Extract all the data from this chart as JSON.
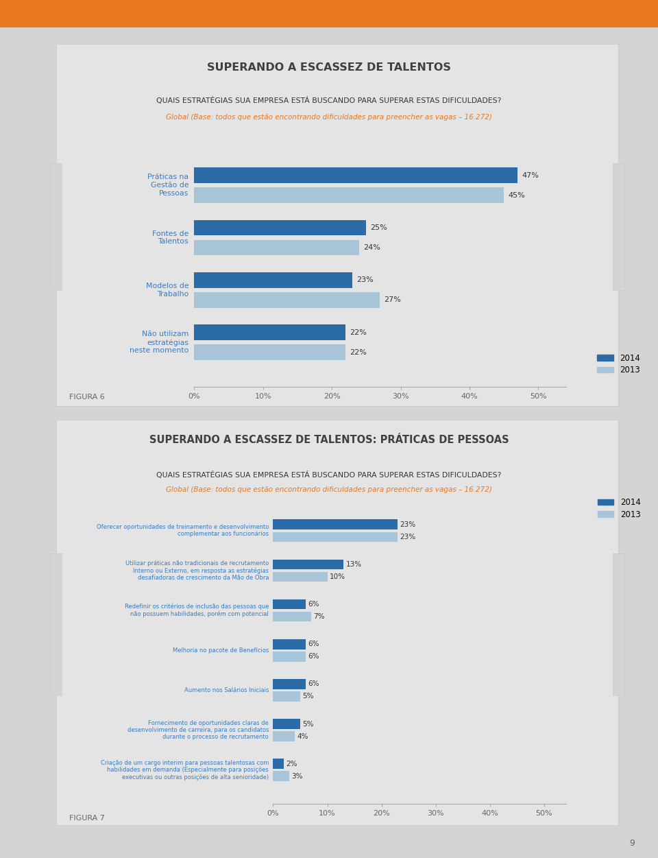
{
  "page_bg": "#d4d4d4",
  "orange_bar_color": "#e8781e",
  "panel_bg": "#e4e4e4",
  "panel_border": "#c8c8c8",
  "chart1": {
    "title": "SUPERANDO A ESCASSEZ DE TALENTOS",
    "question": "QUAIS ESTRATÉGIAS SUA EMPRESA ESTÁ BUSCANDO PARA SUPERAR ESTAS DIFICULDADES?",
    "subtitle": "Global (Base: todos que estão encontrando dificuldades para preencher as vagas – 16.272)",
    "categories": [
      "Práticas na\nGestão de\nPessoas",
      "Fontes de\nTalentos",
      "Modelos de\nTrabalho",
      "Não utilizam\nestratégias\nneste momento"
    ],
    "values_2014": [
      47,
      25,
      23,
      22
    ],
    "values_2013": [
      45,
      24,
      27,
      22
    ],
    "color_2014": "#2b6ca8",
    "color_2013": "#a8c4d8",
    "xticks": [
      0,
      10,
      20,
      30,
      40,
      50
    ],
    "figure_label": "FIGURA 6"
  },
  "chart2": {
    "title": "SUPERANDO A ESCASSEZ DE TALENTOS: PRÁTICAS DE PESSOAS",
    "question": "QUAIS ESTRATÉGIAS SUA EMPRESA ESTÁ BUSCANDO PARA SUPERAR ESTAS DIFICULDADES?",
    "subtitle": "Global (Base: todos que estão encontrando dificuldades para preencher as vagas – 16.272)",
    "categories": [
      "Oferecer oportunidades de treinamento e desenvolvimento\ncomplementar aos funcionários",
      "Utilizar práticas não tradicionais de recrutamento\nInterno ou Externo, em resposta as estratégias\ndesafiadoras de crescimento da Mão de Obra",
      "Redefinir os critérios de inclusão das pessoas que\nnão possuem habilidades, porém com potencial",
      "Melhoria no pacote de Benefícios",
      "Aumento nos Salários Iniciais",
      "Fornecimento de oportunidades claras de\ndesenvolvimento de carreira, para os candidatos\ndurante o processo de recrutamento",
      "Criação de um cargo interim para pessoas talentosas com\nhabilidades em demanda (Especialmente para posições\nexecutivas ou outras posições de alta senioridade)"
    ],
    "values_2014": [
      23,
      13,
      6,
      6,
      6,
      5,
      2
    ],
    "values_2013": [
      23,
      10,
      7,
      6,
      5,
      4,
      3
    ],
    "color_2014": "#2b6ca8",
    "color_2013": "#a8c4d8",
    "xticks": [
      0,
      10,
      20,
      30,
      40,
      50
    ],
    "figure_label": "FIGURA 7"
  }
}
